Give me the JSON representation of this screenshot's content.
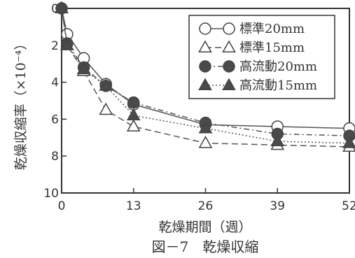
{
  "chart_data": {
    "type": "line",
    "xlabel": "乾燥期間（週）",
    "ylabel": "乾燥収縮率（×10⁻⁴）",
    "caption": "図－7　乾燥収縮",
    "xlim": [
      0,
      52
    ],
    "ylim": [
      0,
      10
    ],
    "y_inverted": true,
    "xticks": [
      0,
      13,
      26,
      39,
      52
    ],
    "xtick_labels": [
      "0",
      "13",
      "26",
      "39",
      "52"
    ],
    "yticks": [
      0,
      2,
      4,
      6,
      8,
      10
    ],
    "ytick_labels": [
      "0",
      "2",
      "4",
      "6",
      "8",
      "10"
    ],
    "legend_position": "top-right",
    "series": [
      {
        "name": "標準20mm",
        "marker": "circle-open",
        "line": "solid",
        "x": [
          0,
          1,
          4,
          8,
          13,
          26,
          39,
          52
        ],
        "y": [
          0,
          1.4,
          2.7,
          4.1,
          5.2,
          6.3,
          6.4,
          6.5
        ]
      },
      {
        "name": "標準15mm",
        "marker": "triangle-open",
        "line": "dashed",
        "x": [
          0,
          1,
          4,
          8,
          13,
          26,
          39,
          52
        ],
        "y": [
          0,
          2.0,
          3.4,
          5.5,
          6.4,
          7.3,
          7.4,
          7.5
        ]
      },
      {
        "name": "高流動20mm",
        "marker": "circle-filled",
        "line": "dash-dot",
        "x": [
          0,
          1,
          4,
          8,
          13,
          26,
          39,
          52
        ],
        "y": [
          0,
          1.9,
          3.2,
          4.2,
          5.1,
          6.2,
          6.8,
          6.9
        ]
      },
      {
        "name": "高流動15mm",
        "marker": "triangle-filled",
        "line": "dotted",
        "x": [
          0,
          1,
          4,
          8,
          13,
          26,
          39,
          52
        ],
        "y": [
          0,
          2.0,
          3.3,
          4.2,
          5.8,
          6.5,
          7.2,
          7.3
        ]
      }
    ]
  }
}
